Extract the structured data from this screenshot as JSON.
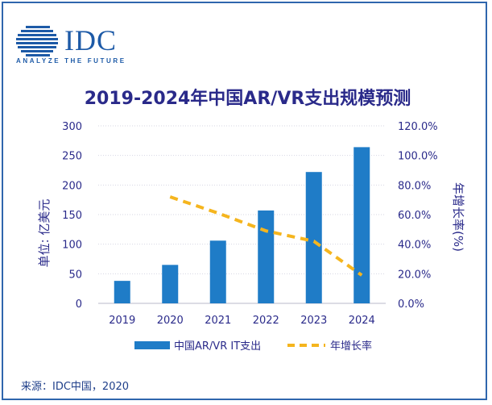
{
  "logo": {
    "brand": "IDC",
    "tagline": "ANALYZE THE FUTURE"
  },
  "title": "2019-2024年中国AR/VR支出规模预测",
  "source": "来源：IDC中国，2020",
  "colors": {
    "bar": "#1f7cc7",
    "line": "#f5b51e",
    "axis_text": "#2a2a8a",
    "frame": "#2f66ad"
  },
  "chart_data": {
    "type": "bar",
    "categories": [
      "2019",
      "2020",
      "2021",
      "2022",
      "2023",
      "2024"
    ],
    "series": [
      {
        "name": "中国AR/VR IT支出",
        "type": "bar",
        "axis": "left",
        "values": [
          38,
          65,
          106,
          157,
          222,
          264
        ]
      },
      {
        "name": "年增长率",
        "type": "line",
        "style": "dashed",
        "axis": "right",
        "values": [
          null,
          72,
          61,
          49,
          42,
          19
        ]
      }
    ],
    "ylabel": "单位: 亿美元",
    "y2label": "年增长率(%)",
    "ylim": [
      0,
      300
    ],
    "y2lim": [
      0,
      120
    ],
    "yticks": [
      "0",
      "50",
      "100",
      "150",
      "200",
      "250",
      "300"
    ],
    "y2ticks": [
      "0.0%",
      "20.0%",
      "40.0%",
      "60.0%",
      "80.0%",
      "100.0%",
      "120.0%"
    ],
    "grid": true,
    "legend_position": "bottom"
  }
}
